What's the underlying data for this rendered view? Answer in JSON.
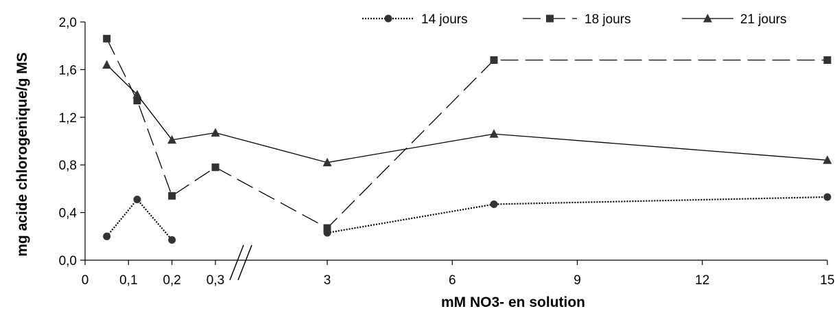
{
  "chart_data": {
    "type": "line",
    "xlabel": "mM NO3- en solution",
    "ylabel": "mg acide chlorogenique/g MS",
    "ylim": [
      0,
      2
    ],
    "y_ticks": [
      "0,0",
      "0,4",
      "0,8",
      "1,2",
      "1,6",
      "2,0"
    ],
    "x_axis": {
      "broken": true,
      "low_segment": {
        "range": [
          0,
          0.3
        ],
        "ticks": [
          "0",
          "0,1",
          "0,2",
          "0,3"
        ]
      },
      "high_segment": {
        "range": [
          3,
          15
        ],
        "ticks": [
          "3",
          "6",
          "9",
          "12",
          "15"
        ]
      }
    },
    "legend_position": "top-right",
    "series": [
      {
        "name": "14 jours",
        "marker": "circle",
        "line_style": "dotted",
        "x": [
          0.05,
          0.12,
          0.2,
          3,
          7,
          15
        ],
        "y": [
          0.2,
          0.51,
          0.17,
          0.23,
          0.47,
          0.53
        ],
        "segments": [
          [
            0,
            1,
            2
          ],
          [
            3,
            4,
            5
          ]
        ]
      },
      {
        "name": "18 jours",
        "marker": "square",
        "line_style": "long-dash",
        "x": [
          0.05,
          0.12,
          0.2,
          0.3,
          3,
          7,
          15
        ],
        "y": [
          1.86,
          1.34,
          0.54,
          0.78,
          0.27,
          1.68,
          1.68
        ],
        "segments": [
          [
            0,
            1,
            2,
            3,
            4,
            5,
            6
          ]
        ]
      },
      {
        "name": "21 jours",
        "marker": "triangle",
        "line_style": "solid",
        "x": [
          0.05,
          0.12,
          0.2,
          0.3,
          3,
          7,
          15
        ],
        "y": [
          1.64,
          1.39,
          1.01,
          1.07,
          0.82,
          1.06,
          0.84
        ],
        "segments": [
          [
            0,
            1,
            2,
            3,
            4,
            5,
            6
          ]
        ]
      }
    ]
  }
}
